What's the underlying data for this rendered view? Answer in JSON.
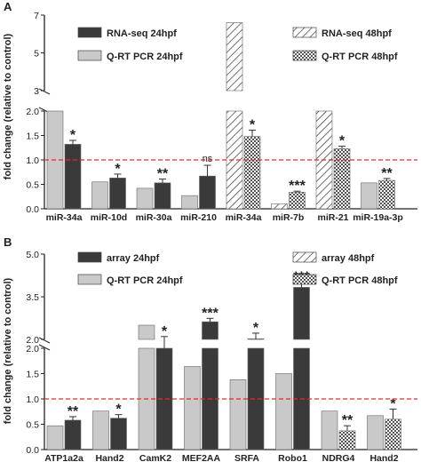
{
  "chart_data": [
    {
      "panel_label": "A",
      "type": "bar",
      "ylabel": "fold change (relative to control)",
      "categories": [
        "miR-34a",
        "miR-10d",
        "miR-30a",
        "miR-210",
        "miR-34a",
        "miR-7b",
        "miR-21",
        "miR-19a-3p"
      ],
      "legend": [
        {
          "label": "RNA-seq  24hpf",
          "pattern": "solid-dark"
        },
        {
          "label": "Q-RT PCR  24hpf",
          "pattern": "solid-light"
        },
        {
          "label": "RNA-seq  48hpf",
          "pattern": "hatch"
        },
        {
          "label": "Q-RT PCR  48hpf",
          "pattern": "crosshatch"
        }
      ],
      "reference_line": 1.0,
      "reference_color": "#d9302c",
      "lower_ylim": [
        0.0,
        2.0
      ],
      "lower_ticks": [
        "0.0",
        "0.5",
        "1.0",
        "1.5",
        "2.0"
      ],
      "upper_ylim": [
        3.0,
        7.0
      ],
      "upper_ticks": [
        "3",
        "5",
        "7"
      ],
      "bars": [
        {
          "category": "miR-34a",
          "series": "RNA-seq  24hpf",
          "pattern": "solid-light",
          "value": 2.7,
          "error": 0,
          "sig": ""
        },
        {
          "category": "miR-34a",
          "series": "Q-RT PCR  24hpf",
          "pattern": "solid-dark",
          "value": 1.32,
          "error": 0.08,
          "sig": "*"
        },
        {
          "category": "miR-10d",
          "series": "RNA-seq  24hpf",
          "pattern": "solid-light",
          "value": 0.55,
          "error": 0,
          "sig": ""
        },
        {
          "category": "miR-10d",
          "series": "Q-RT PCR  24hpf",
          "pattern": "solid-dark",
          "value": 0.63,
          "error": 0.08,
          "sig": "*"
        },
        {
          "category": "miR-30a",
          "series": "RNA-seq  24hpf",
          "pattern": "solid-light",
          "value": 0.42,
          "error": 0,
          "sig": ""
        },
        {
          "category": "miR-30a",
          "series": "Q-RT PCR  24hpf",
          "pattern": "solid-dark",
          "value": 0.53,
          "error": 0.08,
          "sig": "**"
        },
        {
          "category": "miR-210",
          "series": "RNA-seq  24hpf",
          "pattern": "solid-light",
          "value": 0.27,
          "error": 0,
          "sig": ""
        },
        {
          "category": "miR-210",
          "series": "Q-RT PCR  24hpf",
          "pattern": "solid-dark",
          "value": 0.67,
          "error": 0.22,
          "sig": "ns"
        },
        {
          "category": "miR-34a",
          "series": "RNA-seq  48hpf",
          "pattern": "hatch",
          "value": 6.6,
          "error": 0,
          "sig": ""
        },
        {
          "category": "miR-34a",
          "series": "Q-RT PCR  48hpf",
          "pattern": "crosshatch",
          "value": 1.48,
          "error": 0.13,
          "sig": "*"
        },
        {
          "category": "miR-7b",
          "series": "RNA-seq  48hpf",
          "pattern": "hatch",
          "value": 0.1,
          "error": 0,
          "sig": ""
        },
        {
          "category": "miR-7b",
          "series": "Q-RT PCR  48hpf",
          "pattern": "crosshatch",
          "value": 0.34,
          "error": 0.02,
          "sig": "***"
        },
        {
          "category": "miR-21",
          "series": "RNA-seq  48hpf",
          "pattern": "hatch",
          "value": 2.7,
          "error": 0,
          "sig": ""
        },
        {
          "category": "miR-21",
          "series": "Q-RT PCR  48hpf",
          "pattern": "crosshatch",
          "value": 1.23,
          "error": 0.05,
          "sig": "*"
        },
        {
          "category": "miR-19a-3p",
          "series": "RNA-seq  48hpf",
          "pattern": "solid-light",
          "value": 0.53,
          "error": 0,
          "sig": ""
        },
        {
          "category": "miR-19a-3p",
          "series": "Q-RT PCR  48hpf",
          "pattern": "crosshatch",
          "value": 0.58,
          "error": 0.04,
          "sig": "**"
        }
      ]
    },
    {
      "panel_label": "B",
      "type": "bar",
      "ylabel": "fold change (relative to control)",
      "categories": [
        "ATP1a2a",
        "Hand2",
        "CamK2",
        "MEF2AA",
        "SRFA",
        "Robo1",
        "NDRG4",
        "Hand2"
      ],
      "legend": [
        {
          "label": "array  24hpf",
          "pattern": "solid-dark"
        },
        {
          "label": "Q-RT PCR  24hpf",
          "pattern": "solid-light"
        },
        {
          "label": "array  48hpf",
          "pattern": "hatch"
        },
        {
          "label": "Q-RT PCR  48hpf",
          "pattern": "crosshatch"
        }
      ],
      "reference_line": 1.0,
      "reference_color": "#d9302c",
      "lower_ylim": [
        0.0,
        2.0
      ],
      "lower_ticks": [
        "0.0",
        "0.5",
        "1.0",
        "1.5",
        "2.0"
      ],
      "upper_ylim": [
        2.0,
        5.0
      ],
      "upper_ticks": [
        "2.0",
        "3.5",
        "5.0"
      ],
      "bars": [
        {
          "category": "ATP1a2a",
          "series": "array  24hpf",
          "pattern": "solid-light",
          "value": 0.47,
          "error": 0,
          "sig": ""
        },
        {
          "category": "ATP1a2a",
          "series": "Q-RT PCR  24hpf",
          "pattern": "solid-dark",
          "value": 0.58,
          "error": 0.07,
          "sig": "**"
        },
        {
          "category": "Hand2",
          "series": "array  24hpf",
          "pattern": "solid-light",
          "value": 0.76,
          "error": 0,
          "sig": ""
        },
        {
          "category": "Hand2",
          "series": "Q-RT PCR  24hpf",
          "pattern": "solid-dark",
          "value": 0.62,
          "error": 0.07,
          "sig": "*"
        },
        {
          "category": "CamK2",
          "series": "array  24hpf",
          "pattern": "solid-light",
          "value": 2.5,
          "error": 0,
          "sig": ""
        },
        {
          "category": "CamK2",
          "series": "Q-RT PCR  24hpf",
          "pattern": "solid-dark",
          "value": 2.0,
          "error": 0.1,
          "sig": "*"
        },
        {
          "category": "MEF2AA",
          "series": "array  24hpf",
          "pattern": "solid-light",
          "value": 1.64,
          "error": 0,
          "sig": ""
        },
        {
          "category": "MEF2AA",
          "series": "Q-RT PCR  24hpf",
          "pattern": "solid-dark",
          "value": 2.62,
          "error": 0.12,
          "sig": "***"
        },
        {
          "category": "SRFA",
          "series": "array  24hpf",
          "pattern": "solid-light",
          "value": 1.38,
          "error": 0,
          "sig": ""
        },
        {
          "category": "SRFA",
          "series": "Q-RT PCR  24hpf",
          "pattern": "solid-dark",
          "value": 2.02,
          "error": 0.2,
          "sig": "*"
        },
        {
          "category": "Robo1",
          "series": "array  24hpf",
          "pattern": "solid-light",
          "value": 1.5,
          "error": 0,
          "sig": ""
        },
        {
          "category": "Robo1",
          "series": "Q-RT PCR  24hpf",
          "pattern": "solid-dark",
          "value": 3.83,
          "error": 0.18,
          "sig": "***"
        },
        {
          "category": "NDRG4",
          "series": "array  48hpf",
          "pattern": "solid-light",
          "value": 0.76,
          "error": 0,
          "sig": ""
        },
        {
          "category": "NDRG4",
          "series": "Q-RT PCR  48hpf",
          "pattern": "crosshatch",
          "value": 0.37,
          "error": 0.1,
          "sig": "**"
        },
        {
          "category": "Hand2",
          "series": "array  48hpf",
          "pattern": "solid-light",
          "value": 0.67,
          "error": 0,
          "sig": ""
        },
        {
          "category": "Hand2",
          "series": "Q-RT PCR  48hpf",
          "pattern": "crosshatch",
          "value": 0.6,
          "error": 0.2,
          "sig": "*"
        }
      ]
    }
  ],
  "colors": {
    "dark_bar": "#3a3a3a",
    "light_bar": "#c9c9c9",
    "outline": "#222222",
    "reference": "#d9302c"
  }
}
